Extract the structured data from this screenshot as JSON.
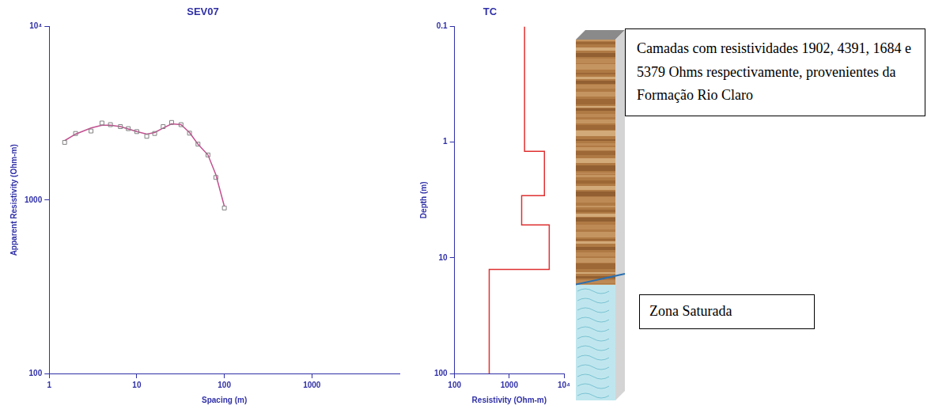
{
  "chart_data": [
    {
      "type": "line",
      "title": "SEV07",
      "x_label": "Spacing (m)",
      "y_label": "Apparent Resistivity (Ohm-m)",
      "log": true,
      "grid": false,
      "xlim": [
        1,
        10000
      ],
      "xticks": [
        1,
        10,
        100,
        1000
      ],
      "ylim": [
        100,
        10000
      ],
      "yticks": [
        100,
        1000,
        {
          "value": 10000,
          "label": "10⁴"
        }
      ],
      "x": [
        1.5,
        2,
        3,
        4,
        5,
        6.5,
        8,
        10,
        13,
        16,
        20,
        25,
        32,
        40,
        50,
        65,
        80,
        100
      ],
      "series": [
        {
          "type": "scatter",
          "marker": "square",
          "color": "#808080",
          "values": [
            2150,
            2420,
            2500,
            2780,
            2720,
            2650,
            2580,
            2480,
            2330,
            2420,
            2650,
            2800,
            2720,
            2430,
            2100,
            1820,
            1350,
            900
          ]
        },
        {
          "type": "line",
          "line_style": "solid",
          "color": "#c2508f",
          "values": [
            2200,
            2400,
            2600,
            2700,
            2700,
            2650,
            2570,
            2480,
            2400,
            2450,
            2600,
            2750,
            2720,
            2450,
            2100,
            1820,
            1400,
            920
          ]
        }
      ]
    },
    {
      "type": "line",
      "title": "TC",
      "x_label": "Resistivity (Ohm-m)",
      "y_label": "Depth (m)",
      "log": true,
      "grid": false,
      "xlim": [
        100,
        10000
      ],
      "xticks": [
        100,
        1000,
        {
          "value": 10000,
          "label": "10⁴"
        }
      ],
      "ylim": [
        0.1,
        100
      ],
      "yticks": [
        0.1,
        1,
        10,
        100
      ],
      "series": [
        {
          "type": "line",
          "line_style": "solid",
          "color": "#e03030",
          "x": [
            1902,
            1902,
            4391,
            4391,
            1684,
            1684,
            5379,
            5379,
            430,
            430
          ],
          "values": [
            0.1,
            1.2,
            1.2,
            2.9,
            2.9,
            5.2,
            5.2,
            12.6,
            12.6,
            100
          ]
        }
      ]
    }
  ],
  "diagram": {
    "layers_note": "Camadas com resistividades 1902, 4391, 1684 e 5379 Ohms respectivamente, provenientes da Formação Rio Claro",
    "saturated_zone": "Zona Saturada"
  }
}
